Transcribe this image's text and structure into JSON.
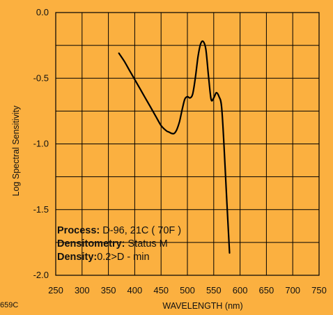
{
  "chart_data": {
    "type": "line",
    "xlabel": "WAVELENGTH (nm)",
    "ylabel": "Log Spectral Sensitivity",
    "xlim": [
      250,
      750
    ],
    "ylim": [
      -2.0,
      0.0
    ],
    "x_ticks": [
      "250",
      "300",
      "350",
      "400",
      "450",
      "500",
      "550",
      "600",
      "650",
      "700",
      "750"
    ],
    "y_ticks": [
      "0.0",
      "-0.5",
      "-1.0",
      "-1.5",
      "-2.0"
    ],
    "y_tick_values": [
      0.0,
      -0.5,
      -1.0,
      -1.5,
      -2.0
    ],
    "grid": true,
    "series": [
      {
        "x": [
          370,
          380,
          390,
          400,
          410,
          420,
          430,
          440,
          450,
          460,
          465,
          470,
          475,
          480,
          485,
          490,
          495,
          500,
          505,
          510,
          515,
          520,
          525,
          530,
          535,
          540,
          545,
          550,
          555,
          560,
          565,
          570,
          575,
          580
        ],
        "y": [
          -0.31,
          -0.37,
          -0.44,
          -0.51,
          -0.58,
          -0.65,
          -0.72,
          -0.79,
          -0.86,
          -0.9,
          -0.91,
          -0.92,
          -0.92,
          -0.89,
          -0.83,
          -0.74,
          -0.66,
          -0.64,
          -0.65,
          -0.62,
          -0.5,
          -0.34,
          -0.24,
          -0.22,
          -0.28,
          -0.48,
          -0.66,
          -0.65,
          -0.61,
          -0.64,
          -0.72,
          -1.05,
          -1.45,
          -1.83
        ]
      }
    ]
  },
  "legend": {
    "process_label": "Process:",
    "process_value": " D-96, 21C ( 70F )",
    "densitometry_label": "Densitometry:",
    "densitometry_value": " Status M",
    "density_label": "Density:",
    "density_value": "0.2>D - min"
  },
  "figure_code": "659C"
}
